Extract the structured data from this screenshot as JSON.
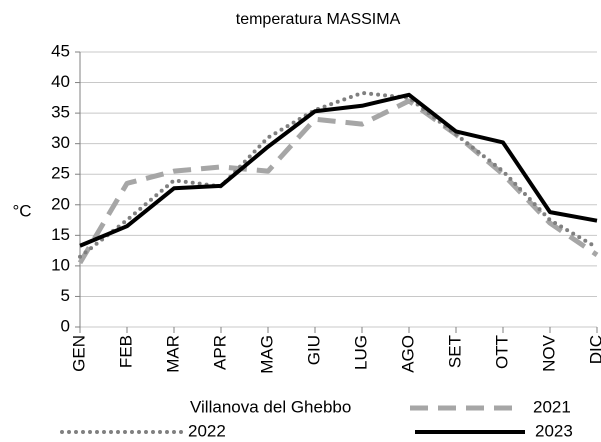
{
  "chart_data": {
    "type": "line",
    "title": "temperatura MASSIMA",
    "y_label": "°C",
    "legend_title": "Villanova del Ghebbo",
    "categories": [
      "GEN",
      "FEB",
      "MAR",
      "APR",
      "MAG",
      "GIU",
      "LUG",
      "AGO",
      "SET",
      "OTT",
      "NOV",
      "DIC"
    ],
    "series": [
      {
        "name": "2021",
        "color": "#a6a6a6",
        "style": "dashed",
        "values": [
          10.5,
          23.5,
          25.5,
          26.2,
          25.5,
          34,
          33.2,
          37,
          31.5,
          25,
          17,
          11.8
        ]
      },
      {
        "name": "2022",
        "color": "#808080",
        "style": "dotted",
        "values": [
          11.5,
          17.5,
          24,
          23,
          31,
          35.5,
          38.3,
          37.5,
          31.5,
          25.5,
          17.5,
          13
        ]
      },
      {
        "name": "2023",
        "color": "#000000",
        "style": "solid",
        "values": [
          13.3,
          16.5,
          22.7,
          23.1,
          29.5,
          35.3,
          36.2,
          38,
          32,
          30.2,
          18.8,
          17.4
        ]
      }
    ],
    "ylim": [
      0,
      45
    ],
    "yticks": [
      0,
      5,
      10,
      15,
      20,
      25,
      30,
      35,
      40,
      45
    ],
    "grid": true
  }
}
